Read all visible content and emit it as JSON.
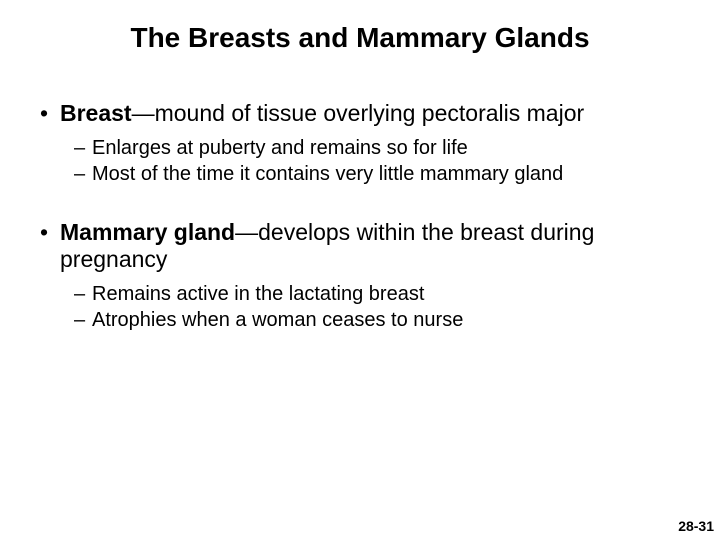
{
  "title": "The Breasts and Mammary Glands",
  "title_fontsize": 28,
  "l1_fontsize": 23,
  "l2_fontsize": 20,
  "pagenum_fontsize": 14,
  "bg_color": "#ffffff",
  "text_color": "#000000",
  "items": [
    {
      "bold": "Breast",
      "rest": "—mound of tissue overlying pectoralis major",
      "sub": [
        "Enlarges at puberty and remains so for life",
        "Most of the time it contains very little mammary gland"
      ]
    },
    {
      "bold": "Mammary gland",
      "rest": "—develops within the breast during pregnancy",
      "sub": [
        "Remains active in the lactating breast",
        "Atrophies when a woman ceases to nurse"
      ]
    }
  ],
  "page_number": "28-31"
}
